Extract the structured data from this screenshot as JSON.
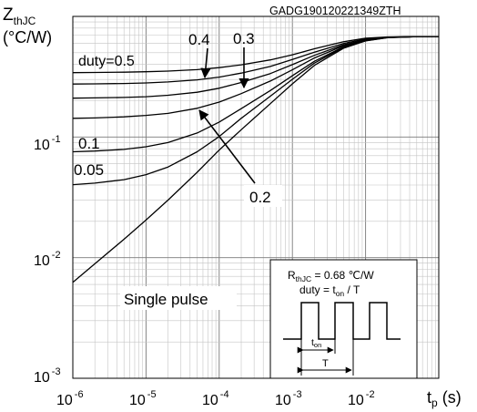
{
  "chart_data": {
    "type": "line",
    "figure_id": "GADG190120221349ZTH",
    "ylabel_main": "Z",
    "ylabel_sub": "thJC",
    "yunit": "(°C/W)",
    "xlabel_main": "t",
    "xlabel_sub": "p",
    "xunit": " (s)",
    "x_scale": "log",
    "y_scale": "log",
    "xlim": [
      1e-06,
      0.1
    ],
    "ylim": [
      0.001,
      1
    ],
    "grid": true,
    "x_ticks": [
      {
        "base": "10",
        "exp": "-6"
      },
      {
        "base": "10",
        "exp": "-5"
      },
      {
        "base": "10",
        "exp": "-4"
      },
      {
        "base": "10",
        "exp": "-3"
      },
      {
        "base": "10",
        "exp": "-2"
      }
    ],
    "y_ticks": [
      {
        "base": "10",
        "exp": "-1"
      },
      {
        "base": "10",
        "exp": "-2"
      },
      {
        "base": "10",
        "exp": "-3"
      }
    ],
    "rthjc_value": 0.68,
    "x": [
      1e-06,
      2e-06,
      5e-06,
      1e-05,
      2e-05,
      5e-05,
      0.0001,
      0.0002,
      0.0005,
      0.001,
      0.002,
      0.005,
      0.01,
      0.02,
      0.05,
      0.1
    ],
    "series": [
      {
        "label": "duty=0.5",
        "values": [
          0.342,
          0.343,
          0.345,
          0.348,
          0.352,
          0.362,
          0.376,
          0.397,
          0.436,
          0.481,
          0.539,
          0.616,
          0.66,
          0.676,
          0.68,
          0.68
        ]
      },
      {
        "label": "0.4",
        "values": [
          0.275,
          0.276,
          0.278,
          0.281,
          0.286,
          0.298,
          0.314,
          0.339,
          0.385,
          0.439,
          0.505,
          0.596,
          0.649,
          0.673,
          0.68,
          0.68
        ]
      },
      {
        "label": "0.3",
        "values": [
          0.21,
          0.211,
          0.213,
          0.216,
          0.222,
          0.235,
          0.254,
          0.283,
          0.336,
          0.398,
          0.476,
          0.582,
          0.641,
          0.671,
          0.679,
          0.68
        ]
      },
      {
        "label": "0.2",
        "values": [
          0.143,
          0.144,
          0.147,
          0.151,
          0.157,
          0.173,
          0.195,
          0.229,
          0.291,
          0.361,
          0.452,
          0.572,
          0.637,
          0.67,
          0.679,
          0.68
        ]
      },
      {
        "label": "0.1",
        "values": [
          0.0755,
          0.0766,
          0.079,
          0.083,
          0.09,
          0.108,
          0.133,
          0.172,
          0.243,
          0.322,
          0.425,
          0.56,
          0.632,
          0.669,
          0.679,
          0.68
        ]
      },
      {
        "label": "0.05",
        "values": [
          0.0403,
          0.0415,
          0.0443,
          0.0488,
          0.0564,
          0.0755,
          0.101,
          0.143,
          0.218,
          0.301,
          0.41,
          0.553,
          0.628,
          0.668,
          0.679,
          0.68
        ]
      },
      {
        "label": "Single pulse",
        "values": [
          0.00625,
          0.0089,
          0.0142,
          0.0205,
          0.03,
          0.051,
          0.078,
          0.115,
          0.189,
          0.276,
          0.393,
          0.545,
          0.626,
          0.667,
          0.679,
          0.68
        ]
      }
    ],
    "inset": {
      "rth_main": "R",
      "rth_sub": "thJC",
      "rth_value": " = 0.68 ℃/W",
      "duty_prefix": "duty = t",
      "duty_sub": "on",
      "duty_suffix": " / T",
      "ton_main": "t",
      "ton_sub": "on",
      "period_label": "T"
    }
  }
}
